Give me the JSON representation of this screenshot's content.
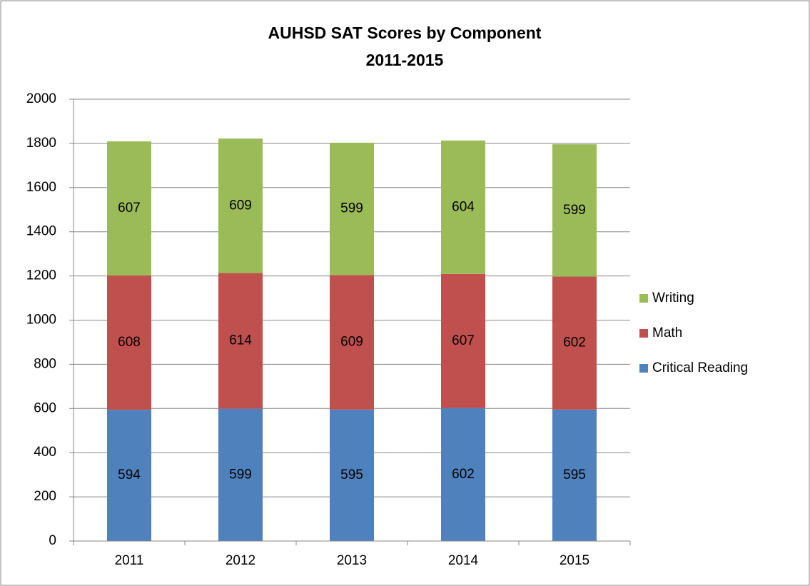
{
  "chart_data": {
    "type": "stacked_bar",
    "title": "AUHSD SAT Scores by Component",
    "subtitle": "2011-2015",
    "categories": [
      "2011",
      "2012",
      "2013",
      "2014",
      "2015"
    ],
    "series": [
      {
        "name": "Critical Reading",
        "color": "#4f81bd",
        "values": [
          594,
          599,
          595,
          602,
          595
        ]
      },
      {
        "name": "Math",
        "color": "#c0504d",
        "values": [
          608,
          614,
          609,
          607,
          602
        ]
      },
      {
        "name": "Writing",
        "color": "#9bbb59",
        "values": [
          607,
          609,
          599,
          604,
          599
        ]
      }
    ],
    "ylim": [
      0,
      2000
    ],
    "yticks": [
      0,
      200,
      400,
      600,
      800,
      1000,
      1200,
      1400,
      1600,
      1800,
      2000
    ],
    "grid": true,
    "legend": "right"
  }
}
